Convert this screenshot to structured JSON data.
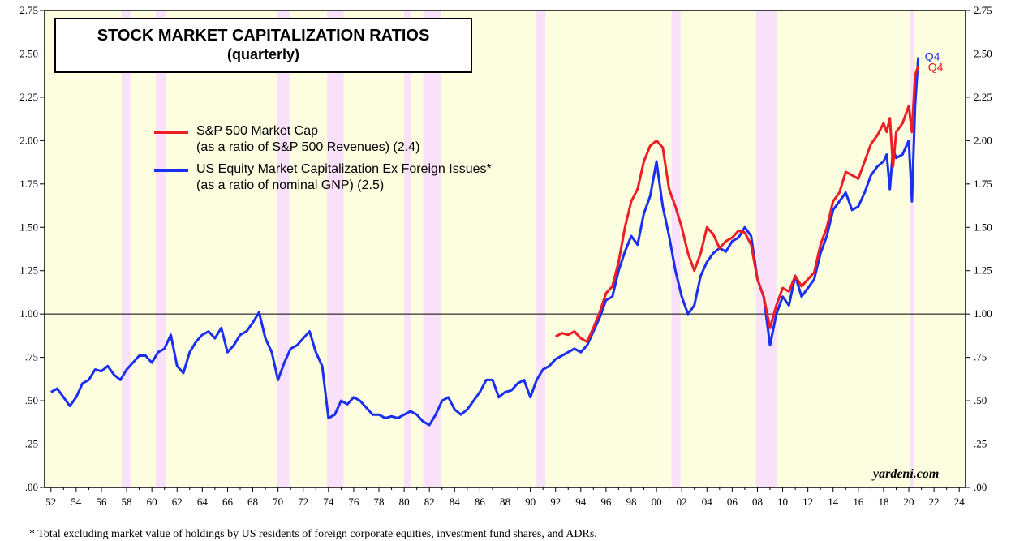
{
  "chart_data": {
    "type": "line",
    "title": "STOCK MARKET CAPITALIZATION RATIOS",
    "subtitle": "(quarterly)",
    "watermark": "yardeni.com",
    "footnote": "*   Total excluding market value of holdings by US residents of foreign corporate equities, investment fund shares, and ADRs.",
    "ylim": [
      0,
      2.75
    ],
    "xlim": [
      1951.5,
      2024.5
    ],
    "y_ticks_left": [
      ".00",
      ".25",
      ".50",
      ".75",
      "1.00",
      "1.25",
      "1.50",
      "1.75",
      "2.00",
      "2.25",
      "2.50",
      "2.75"
    ],
    "y_ticks_right": [
      ".00",
      ".25",
      ".50",
      ".75",
      "1.00",
      "1.25",
      "1.50",
      "1.75",
      "2.00",
      "2.25",
      "2.50",
      "2.75"
    ],
    "x_tick_labels": [
      "52",
      "54",
      "56",
      "58",
      "60",
      "62",
      "64",
      "66",
      "68",
      "70",
      "72",
      "74",
      "76",
      "78",
      "80",
      "82",
      "84",
      "86",
      "88",
      "90",
      "92",
      "94",
      "96",
      "98",
      "00",
      "02",
      "04",
      "06",
      "08",
      "10",
      "12",
      "14",
      "16",
      "18",
      "20",
      "22",
      "24"
    ],
    "reference_line": 1.0,
    "background_color": "#fdfde0",
    "recession_color": "#f9e1f9",
    "recessions": [
      [
        1957.6,
        1958.3
      ],
      [
        1960.3,
        1961.1
      ],
      [
        1969.9,
        1970.9
      ],
      [
        1973.9,
        1975.2
      ],
      [
        1980.0,
        1980.5
      ],
      [
        1981.5,
        1982.9
      ],
      [
        1990.5,
        1991.2
      ],
      [
        2001.2,
        2001.9
      ],
      [
        2007.9,
        2009.5
      ],
      [
        2020.1,
        2020.4
      ]
    ],
    "series": [
      {
        "name": "S&P 500 Market Cap",
        "name_line2": "(as a ratio of S&P 500 Revenues) (2.4)",
        "color": "#ee1c25",
        "end_label": "Q4",
        "x": [
          1992.0,
          1992.5,
          1993.0,
          1993.5,
          1994.0,
          1994.5,
          1995.0,
          1995.5,
          1996.0,
          1996.5,
          1997.0,
          1997.5,
          1998.0,
          1998.5,
          1999.0,
          1999.5,
          2000.0,
          2000.5,
          2001.0,
          2001.5,
          2002.0,
          2002.5,
          2003.0,
          2003.5,
          2004.0,
          2004.5,
          2005.0,
          2005.5,
          2006.0,
          2006.5,
          2007.0,
          2007.5,
          2008.0,
          2008.5,
          2009.0,
          2009.5,
          2010.0,
          2010.5,
          2011.0,
          2011.5,
          2012.0,
          2012.5,
          2013.0,
          2013.5,
          2014.0,
          2014.5,
          2015.0,
          2015.5,
          2016.0,
          2016.5,
          2017.0,
          2017.5,
          2018.0,
          2018.25,
          2018.5,
          2018.75,
          2019.0,
          2019.5,
          2020.0,
          2020.25,
          2020.5,
          2020.75
        ],
        "values": [
          0.87,
          0.89,
          0.88,
          0.9,
          0.86,
          0.84,
          0.92,
          1.01,
          1.12,
          1.16,
          1.3,
          1.5,
          1.65,
          1.72,
          1.88,
          1.97,
          2.0,
          1.96,
          1.72,
          1.62,
          1.5,
          1.35,
          1.25,
          1.35,
          1.5,
          1.46,
          1.38,
          1.42,
          1.44,
          1.48,
          1.47,
          1.4,
          1.2,
          1.1,
          0.92,
          1.05,
          1.15,
          1.13,
          1.22,
          1.16,
          1.2,
          1.24,
          1.4,
          1.5,
          1.65,
          1.7,
          1.82,
          1.8,
          1.78,
          1.88,
          1.98,
          2.03,
          2.1,
          2.05,
          2.13,
          1.85,
          2.05,
          2.1,
          2.2,
          2.05,
          2.38,
          2.43
        ]
      },
      {
        "name": "US Equity Market Capitalization Ex Foreign Issues*",
        "name_line2": "(as a ratio of nominal GNP) (2.5)",
        "color": "#1a2ff0",
        "end_label": "Q4",
        "x": [
          1952.0,
          1952.5,
          1953.0,
          1953.5,
          1954.0,
          1954.5,
          1955.0,
          1955.5,
          1956.0,
          1956.5,
          1957.0,
          1957.5,
          1958.0,
          1958.5,
          1959.0,
          1959.5,
          1960.0,
          1960.5,
          1961.0,
          1961.5,
          1962.0,
          1962.5,
          1963.0,
          1963.5,
          1964.0,
          1964.5,
          1965.0,
          1965.5,
          1966.0,
          1966.5,
          1967.0,
          1967.5,
          1968.0,
          1968.5,
          1969.0,
          1969.5,
          1970.0,
          1970.5,
          1971.0,
          1971.5,
          1972.0,
          1972.5,
          1973.0,
          1973.5,
          1974.0,
          1974.5,
          1975.0,
          1975.5,
          1976.0,
          1976.5,
          1977.0,
          1977.5,
          1978.0,
          1978.5,
          1979.0,
          1979.5,
          1980.0,
          1980.5,
          1981.0,
          1981.5,
          1982.0,
          1982.5,
          1983.0,
          1983.5,
          1984.0,
          1984.5,
          1985.0,
          1985.5,
          1986.0,
          1986.5,
          1987.0,
          1987.5,
          1988.0,
          1988.5,
          1989.0,
          1989.5,
          1990.0,
          1990.5,
          1991.0,
          1991.5,
          1992.0,
          1992.5,
          1993.0,
          1993.5,
          1994.0,
          1994.5,
          1995.0,
          1995.5,
          1996.0,
          1996.5,
          1997.0,
          1997.5,
          1998.0,
          1998.5,
          1999.0,
          1999.5,
          2000.0,
          2000.5,
          2001.0,
          2001.5,
          2002.0,
          2002.5,
          2003.0,
          2003.5,
          2004.0,
          2004.5,
          2005.0,
          2005.5,
          2006.0,
          2006.5,
          2007.0,
          2007.5,
          2008.0,
          2008.5,
          2009.0,
          2009.5,
          2010.0,
          2010.5,
          2011.0,
          2011.5,
          2012.0,
          2012.5,
          2013.0,
          2013.5,
          2014.0,
          2014.5,
          2015.0,
          2015.5,
          2016.0,
          2016.5,
          2017.0,
          2017.5,
          2018.0,
          2018.25,
          2018.5,
          2018.75,
          2019.0,
          2019.5,
          2020.0,
          2020.25,
          2020.5,
          2020.75
        ],
        "values": [
          0.55,
          0.57,
          0.52,
          0.47,
          0.52,
          0.6,
          0.62,
          0.68,
          0.67,
          0.7,
          0.65,
          0.62,
          0.68,
          0.72,
          0.76,
          0.76,
          0.72,
          0.78,
          0.8,
          0.88,
          0.7,
          0.66,
          0.78,
          0.84,
          0.88,
          0.9,
          0.86,
          0.92,
          0.78,
          0.82,
          0.88,
          0.9,
          0.95,
          1.01,
          0.86,
          0.78,
          0.62,
          0.72,
          0.8,
          0.82,
          0.86,
          0.9,
          0.78,
          0.7,
          0.4,
          0.42,
          0.5,
          0.48,
          0.52,
          0.5,
          0.46,
          0.42,
          0.42,
          0.4,
          0.41,
          0.4,
          0.42,
          0.44,
          0.42,
          0.38,
          0.36,
          0.42,
          0.5,
          0.52,
          0.45,
          0.42,
          0.45,
          0.5,
          0.55,
          0.62,
          0.62,
          0.52,
          0.55,
          0.56,
          0.6,
          0.62,
          0.52,
          0.62,
          0.68,
          0.7,
          0.74,
          0.76,
          0.78,
          0.8,
          0.78,
          0.82,
          0.9,
          0.98,
          1.08,
          1.1,
          1.25,
          1.36,
          1.45,
          1.4,
          1.58,
          1.68,
          1.88,
          1.62,
          1.45,
          1.25,
          1.1,
          1.0,
          1.05,
          1.22,
          1.3,
          1.35,
          1.38,
          1.36,
          1.42,
          1.44,
          1.5,
          1.45,
          1.2,
          1.1,
          0.82,
          1.0,
          1.1,
          1.05,
          1.22,
          1.1,
          1.15,
          1.2,
          1.35,
          1.45,
          1.6,
          1.65,
          1.7,
          1.6,
          1.62,
          1.7,
          1.8,
          1.85,
          1.88,
          1.92,
          1.72,
          1.95,
          1.9,
          1.92,
          2.0,
          1.65,
          2.2,
          2.48
        ]
      }
    ]
  }
}
